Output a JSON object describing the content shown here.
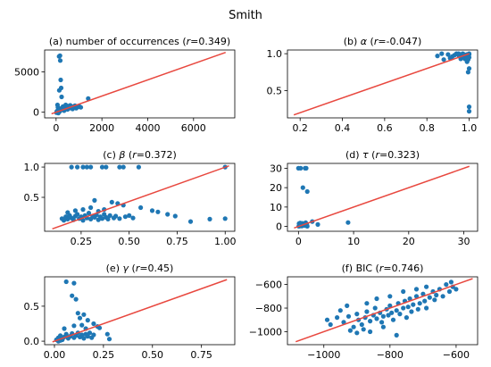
{
  "suptitle": "Smith",
  "chart_data": [
    {
      "type": "scatter",
      "title": "(a) number of occurrences (r=0.349)",
      "title_parts": [
        "(a) number of occurrences (",
        "r",
        "=0.349)"
      ],
      "xlim": [
        -500,
        7800
      ],
      "ylim": [
        -700,
        7700
      ],
      "xticks": [
        0,
        2000,
        4000,
        6000
      ],
      "xtick_labels": [
        "0",
        "2000",
        "4000",
        "6000"
      ],
      "yticks": [
        0,
        5000
      ],
      "ytick_labels": [
        "0",
        "5000"
      ],
      "line": [
        [
          -200,
          -200
        ],
        [
          7400,
          7400
        ]
      ],
      "points": [
        [
          130,
          6900
        ],
        [
          170,
          7000
        ],
        [
          180,
          6400
        ],
        [
          200,
          4000
        ],
        [
          220,
          3000
        ],
        [
          140,
          2700
        ],
        [
          240,
          1900
        ],
        [
          60,
          900
        ],
        [
          80,
          600
        ],
        [
          110,
          400
        ],
        [
          90,
          250
        ],
        [
          50,
          150
        ],
        [
          160,
          100
        ],
        [
          200,
          300
        ],
        [
          250,
          500
        ],
        [
          300,
          700
        ],
        [
          330,
          400
        ],
        [
          350,
          200
        ],
        [
          380,
          650
        ],
        [
          420,
          900
        ],
        [
          460,
          550
        ],
        [
          500,
          350
        ],
        [
          520,
          750
        ],
        [
          580,
          500
        ],
        [
          620,
          850
        ],
        [
          680,
          600
        ],
        [
          720,
          400
        ],
        [
          760,
          700
        ],
        [
          820,
          800
        ],
        [
          880,
          500
        ],
        [
          950,
          650
        ],
        [
          1000,
          750
        ],
        [
          1080,
          600
        ],
        [
          1400,
          1700
        ],
        [
          40,
          50
        ],
        [
          70,
          0
        ],
        [
          20,
          -50
        ],
        [
          100,
          -100
        ],
        [
          30,
          100
        ],
        [
          120,
          200
        ]
      ]
    },
    {
      "type": "scatter",
      "title": "(b) α (r=-0.047)",
      "title_parts": [
        "(b) ",
        "α",
        " (",
        "r",
        "=-0.047)"
      ],
      "xlim": [
        0.14,
        1.04
      ],
      "ylim": [
        0.13,
        1.05
      ],
      "xticks": [
        0.2,
        0.4,
        0.6,
        0.8,
        1.0
      ],
      "xtick_labels": [
        "0.2",
        "0.4",
        "0.6",
        "0.8",
        "1.0"
      ],
      "yticks": [
        0.5,
        1.0
      ],
      "ytick_labels": [
        "0.5",
        "1.0"
      ],
      "line": [
        [
          0.17,
          0.17
        ],
        [
          1.0,
          1.0
        ]
      ],
      "points": [
        [
          0.85,
          0.97
        ],
        [
          0.87,
          1.0
        ],
        [
          0.9,
          0.99
        ],
        [
          0.92,
          0.96
        ],
        [
          0.94,
          1.0
        ],
        [
          0.95,
          0.98
        ],
        [
          0.96,
          0.99
        ],
        [
          0.97,
          1.0
        ],
        [
          0.98,
          0.97
        ],
        [
          0.99,
          0.99
        ],
        [
          1.0,
          1.0
        ],
        [
          1.0,
          0.95
        ],
        [
          0.995,
          0.92
        ],
        [
          0.98,
          0.93
        ],
        [
          0.97,
          0.95
        ],
        [
          0.96,
          0.93
        ],
        [
          0.88,
          0.92
        ],
        [
          0.91,
          0.94
        ],
        [
          0.93,
          0.98
        ],
        [
          0.95,
          1.0
        ],
        [
          1.0,
          0.99
        ],
        [
          0.99,
          0.97
        ],
        [
          0.985,
          0.98
        ],
        [
          0.975,
          0.99
        ],
        [
          1.0,
          0.8
        ],
        [
          0.995,
          0.75
        ],
        [
          1.0,
          0.28
        ],
        [
          1.0,
          0.22
        ],
        [
          0.99,
          0.89
        ],
        [
          0.965,
          0.96
        ]
      ]
    },
    {
      "type": "scatter",
      "title": "(c) β (r=0.372)",
      "title_parts": [
        "(c) ",
        "β",
        " (",
        "r",
        "=0.372)"
      ],
      "xlim": [
        0.06,
        1.05
      ],
      "ylim": [
        -0.06,
        1.06
      ],
      "xticks": [
        0.25,
        0.5,
        0.75,
        1.0
      ],
      "xtick_labels": [
        "0.25",
        "0.50",
        "0.75",
        "1.00"
      ],
      "yticks": [
        0.5,
        1.0
      ],
      "ytick_labels": [
        "0.5",
        "1.0"
      ],
      "line": [
        [
          0.1,
          -0.02
        ],
        [
          1.02,
          1.02
        ]
      ],
      "points": [
        [
          0.2,
          1.0
        ],
        [
          0.23,
          1.0
        ],
        [
          0.26,
          1.0
        ],
        [
          0.28,
          1.0
        ],
        [
          0.3,
          1.0
        ],
        [
          0.36,
          1.0
        ],
        [
          0.38,
          1.0
        ],
        [
          0.45,
          1.0
        ],
        [
          0.47,
          1.0
        ],
        [
          0.55,
          1.0
        ],
        [
          1.0,
          1.0
        ],
        [
          0.32,
          0.45
        ],
        [
          0.41,
          0.42
        ],
        [
          0.44,
          0.4
        ],
        [
          0.47,
          0.37
        ],
        [
          0.56,
          0.33
        ],
        [
          0.62,
          0.28
        ],
        [
          0.65,
          0.26
        ],
        [
          0.7,
          0.22
        ],
        [
          0.74,
          0.19
        ],
        [
          0.82,
          0.1
        ],
        [
          0.92,
          0.14
        ],
        [
          1.0,
          0.15
        ],
        [
          0.15,
          0.15
        ],
        [
          0.16,
          0.12
        ],
        [
          0.17,
          0.18
        ],
        [
          0.18,
          0.14
        ],
        [
          0.19,
          0.2
        ],
        [
          0.2,
          0.16
        ],
        [
          0.21,
          0.13
        ],
        [
          0.22,
          0.19
        ],
        [
          0.23,
          0.22
        ],
        [
          0.24,
          0.15
        ],
        [
          0.25,
          0.18
        ],
        [
          0.26,
          0.12
        ],
        [
          0.27,
          0.2
        ],
        [
          0.28,
          0.16
        ],
        [
          0.29,
          0.24
        ],
        [
          0.3,
          0.14
        ],
        [
          0.31,
          0.19
        ],
        [
          0.32,
          0.17
        ],
        [
          0.33,
          0.21
        ],
        [
          0.34,
          0.13
        ],
        [
          0.35,
          0.18
        ],
        [
          0.36,
          0.15
        ],
        [
          0.37,
          0.22
        ],
        [
          0.38,
          0.17
        ],
        [
          0.39,
          0.14
        ],
        [
          0.4,
          0.2
        ],
        [
          0.42,
          0.16
        ],
        [
          0.43,
          0.19
        ],
        [
          0.45,
          0.15
        ],
        [
          0.48,
          0.18
        ],
        [
          0.5,
          0.2
        ],
        [
          0.52,
          0.16
        ],
        [
          0.18,
          0.25
        ],
        [
          0.22,
          0.28
        ],
        [
          0.26,
          0.3
        ],
        [
          0.3,
          0.33
        ],
        [
          0.34,
          0.27
        ],
        [
          0.37,
          0.3
        ]
      ]
    },
    {
      "type": "scatter",
      "title": "(d) τ (r=0.323)",
      "title_parts": [
        "(d) ",
        "τ",
        " (",
        "r",
        "=0.323)"
      ],
      "xlim": [
        -2,
        32.5
      ],
      "ylim": [
        -2.5,
        32.5
      ],
      "xticks": [
        0,
        10,
        20,
        30
      ],
      "xtick_labels": [
        "0",
        "10",
        "20",
        "30"
      ],
      "yticks": [
        0,
        10,
        20,
        30
      ],
      "ytick_labels": [
        "0",
        "10",
        "20",
        "30"
      ],
      "line": [
        [
          -0.8,
          -0.8
        ],
        [
          31,
          31
        ]
      ],
      "points": [
        [
          0,
          30
        ],
        [
          0.4,
          30
        ],
        [
          1.2,
          30
        ],
        [
          1.4,
          30
        ],
        [
          0.8,
          20
        ],
        [
          1.6,
          18
        ],
        [
          0.1,
          1.5
        ],
        [
          0.3,
          1.8
        ],
        [
          0.5,
          1.2
        ],
        [
          0.7,
          1.6
        ],
        [
          0.9,
          0.8
        ],
        [
          1.1,
          1.4
        ],
        [
          1.3,
          1.9
        ],
        [
          1.5,
          1.1
        ],
        [
          0.2,
          0.3
        ],
        [
          0.4,
          0.6
        ],
        [
          0.6,
          0.2
        ],
        [
          0.8,
          0.5
        ],
        [
          1.0,
          0.9
        ],
        [
          1.2,
          0.4
        ],
        [
          1.4,
          0.7
        ],
        [
          1.6,
          0.1
        ],
        [
          0.05,
          0.1
        ],
        [
          0.15,
          0.4
        ],
        [
          0.25,
          0.2
        ],
        [
          0.35,
          0.8
        ],
        [
          0.45,
          0.5
        ],
        [
          0.55,
          0.3
        ],
        [
          2.5,
          2.5
        ],
        [
          3.5,
          1.0
        ],
        [
          9,
          2.0
        ]
      ]
    },
    {
      "type": "scatter",
      "title": "(e) γ (r=0.45)",
      "title_parts": [
        "(e) ",
        "γ",
        " (",
        "r",
        "=0.45)"
      ],
      "xlim": [
        -0.05,
        0.92
      ],
      "ylim": [
        -0.05,
        0.92
      ],
      "xticks": [
        0,
        0.25,
        0.5,
        0.75
      ],
      "xtick_labels": [
        "0.00",
        "0.25",
        "0.50",
        "0.75"
      ],
      "yticks": [
        0,
        0.5
      ],
      "ytick_labels": [
        "0.0",
        "0.5"
      ],
      "line": [
        [
          -0.01,
          -0.01
        ],
        [
          0.88,
          0.88
        ]
      ],
      "points": [
        [
          0.06,
          0.85
        ],
        [
          0.1,
          0.83
        ],
        [
          0.09,
          0.65
        ],
        [
          0.11,
          0.6
        ],
        [
          0.12,
          0.4
        ],
        [
          0.15,
          0.38
        ],
        [
          0.13,
          0.33
        ],
        [
          0.17,
          0.3
        ],
        [
          0.2,
          0.25
        ],
        [
          0.1,
          0.22
        ],
        [
          0.14,
          0.23
        ],
        [
          0.22,
          0.21
        ],
        [
          0.23,
          0.19
        ],
        [
          0.16,
          0.18
        ],
        [
          0.05,
          0.18
        ],
        [
          0.02,
          0.05
        ],
        [
          0.03,
          0.08
        ],
        [
          0.04,
          0.03
        ],
        [
          0.05,
          0.06
        ],
        [
          0.06,
          0.1
        ],
        [
          0.07,
          0.04
        ],
        [
          0.08,
          0.07
        ],
        [
          0.09,
          0.11
        ],
        [
          0.1,
          0.05
        ],
        [
          0.11,
          0.08
        ],
        [
          0.12,
          0.12
        ],
        [
          0.13,
          0.06
        ],
        [
          0.14,
          0.09
        ],
        [
          0.15,
          0.04
        ],
        [
          0.16,
          0.1
        ],
        [
          0.17,
          0.07
        ],
        [
          0.18,
          0.12
        ],
        [
          0.19,
          0.05
        ],
        [
          0.2,
          0.09
        ],
        [
          0.01,
          0.02
        ],
        [
          0.02,
          0.0
        ],
        [
          0.03,
          0.01
        ],
        [
          0.04,
          0.02
        ],
        [
          0.27,
          0.1
        ],
        [
          0.28,
          0.03
        ]
      ]
    },
    {
      "type": "scatter",
      "title": "(f) BIC (r=0.746)",
      "title_parts": [
        "(f) BIC (",
        "r",
        "=0.746)"
      ],
      "xlim": [
        -1110,
        -535
      ],
      "ylim": [
        -1110,
        -535
      ],
      "xticks": [
        -1000,
        -800,
        -600
      ],
      "xtick_labels": [
        "−1000",
        "−800",
        "−600"
      ],
      "yticks": [
        -1000,
        -800,
        -600
      ],
      "ytick_labels": [
        "−1000",
        "−800",
        "−600"
      ],
      "line": [
        [
          -1085,
          -1085
        ],
        [
          -550,
          -550
        ]
      ],
      "points": [
        [
          -960,
          -880
        ],
        [
          -940,
          -920
        ],
        [
          -925,
          -870
        ],
        [
          -910,
          -960
        ],
        [
          -900,
          -850
        ],
        [
          -895,
          -900
        ],
        [
          -885,
          -940
        ],
        [
          -875,
          -880
        ],
        [
          -870,
          -830
        ],
        [
          -860,
          -910
        ],
        [
          -850,
          -860
        ],
        [
          -845,
          -800
        ],
        [
          -840,
          -890
        ],
        [
          -830,
          -840
        ],
        [
          -825,
          -920
        ],
        [
          -820,
          -870
        ],
        [
          -810,
          -810
        ],
        [
          -805,
          -860
        ],
        [
          -800,
          -780
        ],
        [
          -795,
          -840
        ],
        [
          -790,
          -900
        ],
        [
          -780,
          -820
        ],
        [
          -775,
          -760
        ],
        [
          -770,
          -850
        ],
        [
          -760,
          -800
        ],
        [
          -755,
          -740
        ],
        [
          -750,
          -880
        ],
        [
          -745,
          -790
        ],
        [
          -740,
          -720
        ],
        [
          -735,
          -830
        ],
        [
          -730,
          -770
        ],
        [
          -720,
          -700
        ],
        [
          -715,
          -810
        ],
        [
          -710,
          -760
        ],
        [
          -700,
          -680
        ],
        [
          -695,
          -740
        ],
        [
          -690,
          -800
        ],
        [
          -680,
          -710
        ],
        [
          -670,
          -660
        ],
        [
          -665,
          -730
        ],
        [
          -660,
          -690
        ],
        [
          -650,
          -640
        ],
        [
          -640,
          -700
        ],
        [
          -630,
          -600
        ],
        [
          -620,
          -660
        ],
        [
          -610,
          -620
        ],
        [
          -615,
          -580
        ],
        [
          -600,
          -640
        ],
        [
          -880,
          -980
        ],
        [
          -900,
          -1010
        ],
        [
          -920,
          -990
        ],
        [
          -860,
          -1000
        ],
        [
          -820,
          -960
        ],
        [
          -780,
          -1030
        ],
        [
          -980,
          -940
        ],
        [
          -990,
          -900
        ],
        [
          -950,
          -820
        ],
        [
          -930,
          -780
        ],
        [
          -870,
          -760
        ],
        [
          -840,
          -720
        ],
        [
          -800,
          -700
        ],
        [
          -760,
          -660
        ],
        [
          -720,
          -640
        ],
        [
          -690,
          -620
        ]
      ]
    }
  ]
}
